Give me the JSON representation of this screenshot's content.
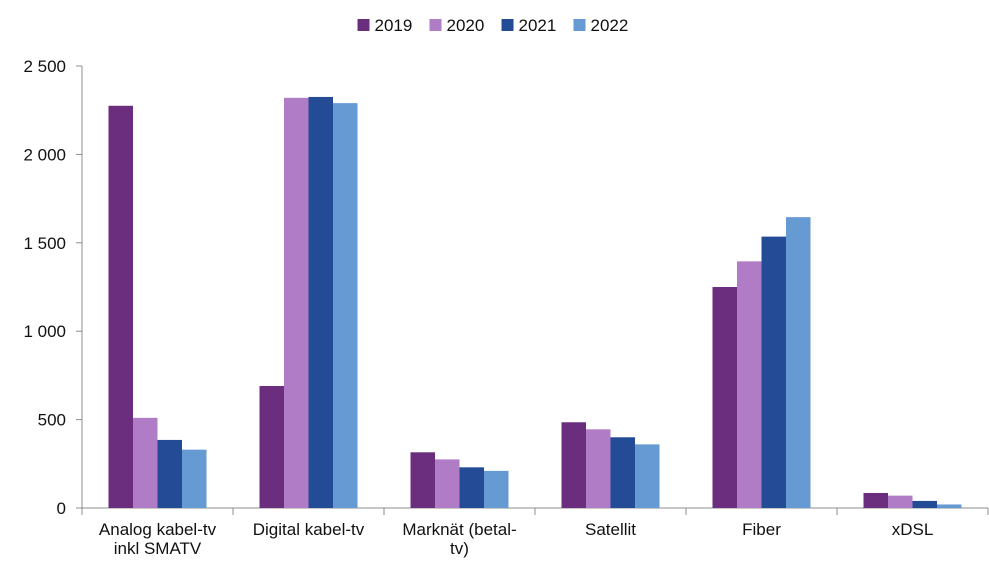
{
  "chart_data": {
    "type": "bar",
    "categories": [
      [
        "Analog kabel-tv",
        "inkl SMATV"
      ],
      [
        "Digital kabel-tv"
      ],
      [
        "Marknät (betal-",
        "tv)"
      ],
      [
        "Satellit"
      ],
      [
        "Fiber"
      ],
      [
        "xDSL"
      ]
    ],
    "series": [
      {
        "name": "2019",
        "color": "#6b2d7e",
        "values": [
          2275,
          690,
          315,
          485,
          1250,
          85
        ]
      },
      {
        "name": "2020",
        "color": "#b07cc6",
        "values": [
          510,
          2320,
          275,
          445,
          1395,
          70
        ]
      },
      {
        "name": "2021",
        "color": "#234b96",
        "values": [
          385,
          2325,
          230,
          400,
          1535,
          40
        ]
      },
      {
        "name": "2022",
        "color": "#659ad2",
        "values": [
          330,
          2290,
          210,
          360,
          1645,
          20
        ]
      }
    ],
    "yticks": [
      0,
      500,
      1000,
      1500,
      2000,
      2500
    ],
    "ytick_labels": [
      "0",
      "500",
      "1 000",
      "1 500",
      "2 000",
      "2 500"
    ],
    "ylim": [
      0,
      2500
    ],
    "legend_position": "top-center",
    "grid": false
  }
}
